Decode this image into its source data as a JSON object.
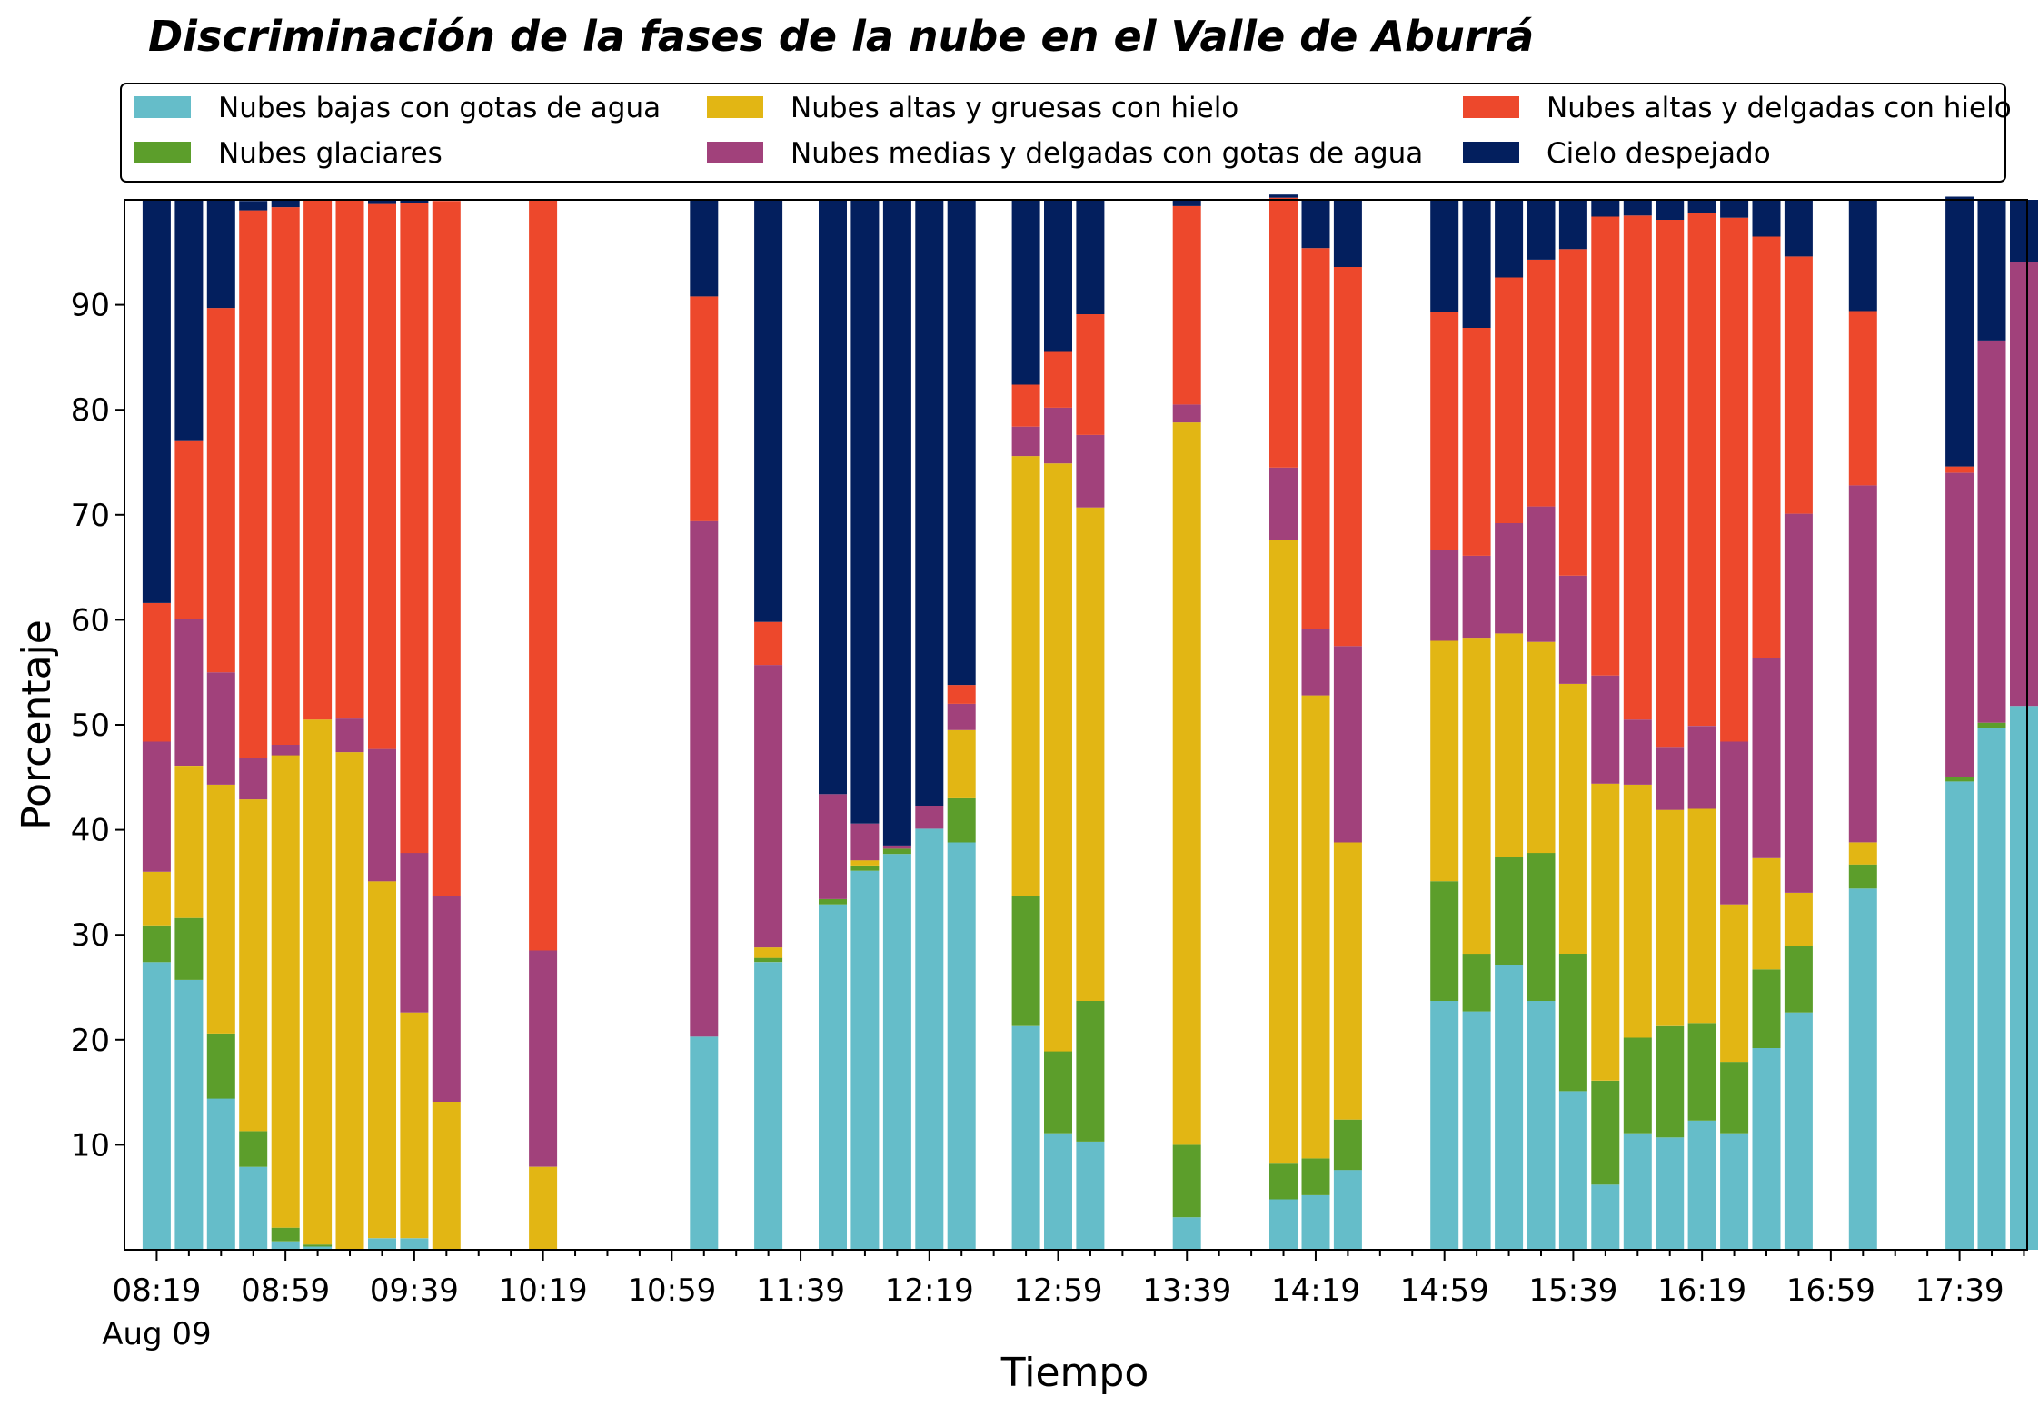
{
  "chart_data": {
    "type": "bar",
    "stacked": true,
    "title": "Discriminación de la fases de la nube en el Valle de Aburrá",
    "xlabel": "Tiempo",
    "ylabel": "Porcentaje",
    "ylim": [
      0,
      100
    ],
    "yticks": [
      10,
      20,
      30,
      40,
      50,
      60,
      70,
      80,
      90
    ],
    "xtick_labels": [
      "08:19",
      "08:59",
      "09:39",
      "10:19",
      "10:59",
      "11:39",
      "12:19",
      "12:59",
      "13:39",
      "14:19",
      "14:59",
      "15:39",
      "16:19",
      "16:59",
      "17:39"
    ],
    "xtick_sublabel": "Aug 09",
    "legend_placement": "top",
    "grid": false,
    "x": [
      "08:19",
      "08:29",
      "08:39",
      "08:49",
      "08:59",
      "09:09",
      "09:19",
      "09:29",
      "09:39",
      "09:49",
      "10:19",
      "11:09",
      "11:29",
      "11:49",
      "11:59",
      "12:09",
      "12:19",
      "12:29",
      "12:49",
      "12:59",
      "13:09",
      "13:39",
      "14:09",
      "14:19",
      "14:29",
      "14:59",
      "15:09",
      "15:19",
      "15:29",
      "15:39",
      "15:49",
      "15:59",
      "16:09",
      "16:19",
      "16:29",
      "16:39",
      "16:49",
      "17:09",
      "17:39",
      "17:49",
      "17:59"
    ],
    "series": [
      {
        "name": "Nubes bajas con gotas de agua",
        "color": "#65bdc9",
        "values": [
          27.4,
          25.7,
          14.4,
          7.9,
          0.8,
          0.3,
          0,
          1.1,
          1.1,
          0,
          0,
          20.3,
          27.4,
          32.9,
          36.1,
          37.7,
          40.1,
          38.8,
          21.3,
          11.1,
          10.3,
          3.1,
          4.8,
          5.2,
          7.6,
          23.7,
          22.7,
          27.1,
          23.7,
          15.1,
          6.2,
          11.1,
          10.7,
          12.3,
          11.1,
          19.2,
          22.6,
          34.4,
          44.6,
          49.7,
          51.8
        ]
      },
      {
        "name": "Nubes glaciares",
        "color": "#5c9e2b",
        "values": [
          3.5,
          5.9,
          6.2,
          3.4,
          1.3,
          0.2,
          0,
          0,
          0,
          0,
          0,
          0,
          0.4,
          0.5,
          0.5,
          0.5,
          0,
          4.2,
          12.4,
          7.8,
          13.4,
          6.9,
          3.4,
          3.5,
          4.8,
          11.4,
          5.5,
          10.3,
          14.1,
          13.1,
          9.9,
          9.1,
          10.6,
          9.3,
          6.8,
          7.5,
          6.3,
          2.3,
          0.4,
          0.5,
          0
        ]
      },
      {
        "name": "Nubes altas y gruesas con hielo",
        "color": "#e2b614",
        "values": [
          5.1,
          14.5,
          23.7,
          31.6,
          45.0,
          50.0,
          47.4,
          34.0,
          21.5,
          14.1,
          7.9,
          0,
          1.0,
          0,
          0.5,
          0,
          0,
          6.5,
          41.9,
          56.0,
          47.0,
          68.8,
          59.4,
          44.1,
          26.4,
          22.9,
          30.1,
          21.3,
          20.1,
          25.7,
          28.3,
          24.1,
          20.6,
          20.4,
          15.0,
          10.6,
          5.1,
          2.1,
          0,
          0,
          0
        ]
      },
      {
        "name": "Nubes medias y delgadas con gotas de agua",
        "color": "#a1417b",
        "values": [
          12.4,
          14.0,
          10.7,
          3.9,
          1.0,
          0,
          3.2,
          12.6,
          15.2,
          19.6,
          20.6,
          49.1,
          26.9,
          10.0,
          3.5,
          0.3,
          2.2,
          2.5,
          2.8,
          5.3,
          6.9,
          1.7,
          6.9,
          6.3,
          18.7,
          8.7,
          7.8,
          10.5,
          12.9,
          10.3,
          10.3,
          6.2,
          6.0,
          7.9,
          15.5,
          19.1,
          36.1,
          34.0,
          29.0,
          36.4,
          42.3
        ]
      },
      {
        "name": "Nubes altas y delgadas con hielo",
        "color": "#ed482c",
        "values": [
          13.2,
          17.0,
          34.7,
          52.2,
          51.2,
          49.5,
          49.4,
          51.9,
          61.9,
          66.2,
          71.5,
          21.4,
          4.1,
          0,
          0,
          0,
          0,
          1.8,
          4.0,
          5.4,
          11.5,
          18.9,
          25.7,
          36.3,
          36.1,
          22.6,
          21.7,
          23.4,
          23.5,
          31.1,
          43.7,
          48.0,
          50.2,
          48.8,
          49.9,
          40.1,
          24.5,
          16.6,
          0.6,
          0,
          0
        ]
      },
      {
        "name": "Cielo despejado",
        "color": "#031f5e",
        "values": [
          38.4,
          22.9,
          10.3,
          0.9,
          0.7,
          0,
          0,
          0.4,
          0.3,
          0,
          0,
          9.2,
          40.2,
          56.6,
          59.4,
          61.5,
          57.7,
          46.2,
          17.6,
          14.4,
          10.9,
          0.6,
          0.3,
          4.6,
          6.4,
          10.7,
          12.2,
          7.4,
          5.7,
          4.7,
          1.6,
          1.5,
          1.9,
          1.3,
          1.7,
          3.5,
          5.4,
          10.6,
          25.7,
          13.4,
          5.9
        ]
      }
    ]
  }
}
